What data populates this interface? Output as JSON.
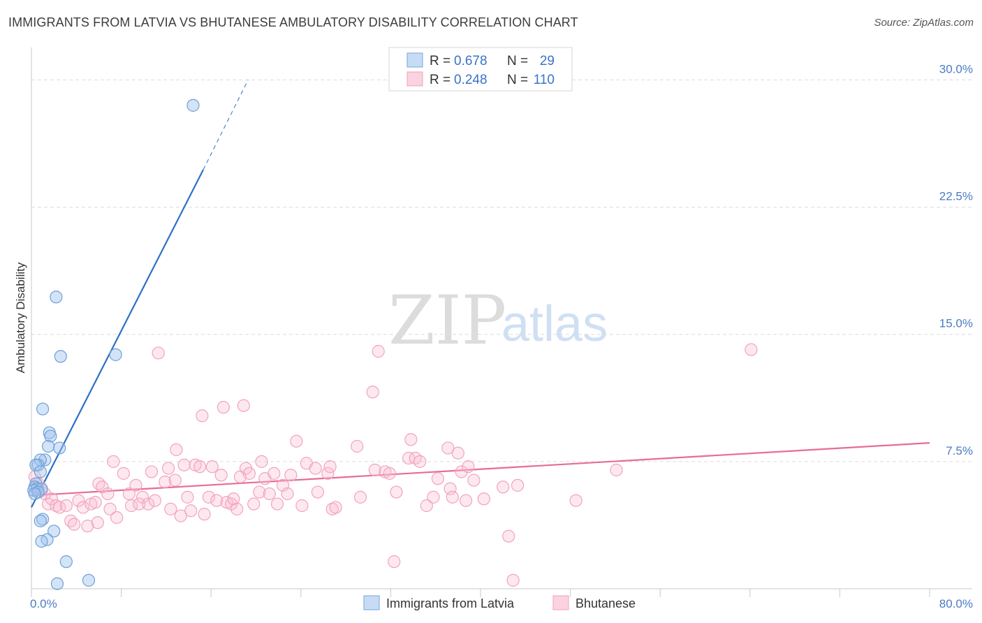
{
  "title": "IMMIGRANTS FROM LATVIA VS BHUTANESE AMBULATORY DISABILITY CORRELATION CHART",
  "source": "Source: ZipAtlas.com",
  "watermark": {
    "zip": "ZIP",
    "atlas": "atlas"
  },
  "legend": {
    "rows": [
      {
        "r_label": "R =",
        "r_value": "0.678",
        "n_label": "N =",
        "n_value": "29"
      },
      {
        "r_label": "R =",
        "r_value": "0.248",
        "n_label": "N =",
        "n_value": "110"
      }
    ]
  },
  "bottom_legend": [
    "Immigrants from Latvia",
    "Bhutanese"
  ],
  "chart_data": {
    "type": "scatter",
    "ylabel": "Ambulatory Disability",
    "xlabel": "",
    "xlim": [
      0,
      80
    ],
    "ylim": [
      0,
      31.5
    ],
    "y_ticks": [
      7.5,
      15.0,
      22.5,
      30.0
    ],
    "y_tick_labels": [
      "7.5%",
      "15.0%",
      "22.5%",
      "30.0%"
    ],
    "x_tick_labels": [
      "0.0%",
      "80.0%"
    ],
    "colors": {
      "latvia": "#6f9fd8",
      "bhutanese": "#f4a0b8",
      "latvia_line": "#2f6fc4",
      "bhutanese_line": "#e86b98"
    },
    "series": [
      {
        "name": "Immigrants from Latvia",
        "points": [
          [
            14.4,
            28.5
          ],
          [
            2.2,
            17.2
          ],
          [
            2.6,
            13.7
          ],
          [
            7.5,
            13.8
          ],
          [
            1.0,
            10.6
          ],
          [
            1.6,
            9.2
          ],
          [
            1.7,
            9.0
          ],
          [
            1.5,
            8.4
          ],
          [
            2.5,
            8.3
          ],
          [
            1.2,
            7.6
          ],
          [
            0.8,
            7.6
          ],
          [
            0.6,
            7.3
          ],
          [
            0.4,
            7.3
          ],
          [
            0.8,
            6.9
          ],
          [
            0.4,
            6.2
          ],
          [
            0.3,
            6.0
          ],
          [
            0.5,
            5.9
          ],
          [
            0.9,
            5.9
          ],
          [
            0.2,
            5.8
          ],
          [
            0.6,
            5.7
          ],
          [
            0.3,
            5.6
          ],
          [
            1.0,
            4.1
          ],
          [
            0.8,
            4.0
          ],
          [
            2.0,
            3.4
          ],
          [
            1.4,
            2.9
          ],
          [
            0.9,
            2.8
          ],
          [
            3.1,
            1.6
          ],
          [
            2.3,
            0.3
          ],
          [
            5.1,
            0.5
          ]
        ]
      },
      {
        "name": "Bhutanese",
        "points": [
          [
            0.3,
            6.6
          ],
          [
            0.6,
            6.2
          ],
          [
            0.9,
            5.8
          ],
          [
            1.2,
            5.6
          ],
          [
            1.5,
            5.0
          ],
          [
            1.8,
            5.3
          ],
          [
            2.2,
            4.9
          ],
          [
            2.5,
            4.8
          ],
          [
            3.1,
            4.9
          ],
          [
            3.5,
            4.0
          ],
          [
            3.8,
            3.8
          ],
          [
            4.2,
            5.2
          ],
          [
            4.6,
            4.8
          ],
          [
            5.0,
            3.7
          ],
          [
            5.3,
            5.0
          ],
          [
            5.7,
            5.1
          ],
          [
            5.9,
            3.9
          ],
          [
            6.0,
            6.2
          ],
          [
            6.3,
            6.0
          ],
          [
            6.8,
            5.6
          ],
          [
            7.0,
            4.7
          ],
          [
            7.3,
            7.5
          ],
          [
            7.6,
            4.2
          ],
          [
            8.2,
            6.8
          ],
          [
            8.7,
            5.6
          ],
          [
            8.9,
            4.9
          ],
          [
            9.3,
            6.1
          ],
          [
            9.6,
            5.0
          ],
          [
            9.9,
            5.4
          ],
          [
            10.4,
            5.0
          ],
          [
            10.7,
            6.9
          ],
          [
            11.0,
            5.2
          ],
          [
            11.3,
            13.9
          ],
          [
            11.9,
            6.3
          ],
          [
            12.2,
            7.1
          ],
          [
            12.4,
            4.7
          ],
          [
            12.8,
            6.4
          ],
          [
            12.9,
            8.2
          ],
          [
            13.3,
            4.3
          ],
          [
            13.6,
            7.3
          ],
          [
            13.9,
            5.4
          ],
          [
            14.2,
            4.6
          ],
          [
            14.6,
            7.3
          ],
          [
            15.0,
            7.2
          ],
          [
            15.2,
            10.2
          ],
          [
            15.4,
            4.4
          ],
          [
            15.8,
            5.4
          ],
          [
            16.1,
            7.2
          ],
          [
            16.5,
            5.2
          ],
          [
            16.9,
            6.7
          ],
          [
            17.1,
            10.7
          ],
          [
            17.4,
            5.1
          ],
          [
            17.8,
            5.0
          ],
          [
            18.0,
            5.3
          ],
          [
            18.3,
            4.7
          ],
          [
            18.6,
            6.6
          ],
          [
            18.9,
            10.8
          ],
          [
            19.1,
            7.1
          ],
          [
            19.4,
            6.8
          ],
          [
            19.8,
            5.0
          ],
          [
            20.3,
            5.7
          ],
          [
            20.5,
            7.5
          ],
          [
            20.8,
            6.5
          ],
          [
            21.2,
            5.6
          ],
          [
            21.6,
            6.8
          ],
          [
            21.9,
            5.0
          ],
          [
            22.4,
            6.1
          ],
          [
            22.8,
            5.6
          ],
          [
            23.1,
            6.7
          ],
          [
            23.6,
            8.7
          ],
          [
            24.1,
            4.9
          ],
          [
            24.5,
            7.4
          ],
          [
            25.3,
            7.1
          ],
          [
            25.5,
            5.7
          ],
          [
            26.4,
            6.8
          ],
          [
            26.6,
            7.2
          ],
          [
            26.8,
            4.7
          ],
          [
            27.1,
            4.8
          ],
          [
            29.0,
            8.4
          ],
          [
            29.3,
            5.4
          ],
          [
            30.6,
            7.0
          ],
          [
            30.9,
            14.0
          ],
          [
            30.4,
            11.6
          ],
          [
            31.5,
            6.9
          ],
          [
            31.9,
            6.8
          ],
          [
            32.3,
            1.6
          ],
          [
            32.5,
            5.7
          ],
          [
            33.6,
            7.7
          ],
          [
            33.8,
            8.8
          ],
          [
            34.2,
            7.7
          ],
          [
            34.6,
            7.5
          ],
          [
            35.2,
            4.9
          ],
          [
            35.8,
            5.4
          ],
          [
            36.2,
            6.5
          ],
          [
            37.3,
            5.9
          ],
          [
            37.1,
            8.3
          ],
          [
            37.5,
            5.4
          ],
          [
            38.0,
            8.0
          ],
          [
            38.3,
            6.9
          ],
          [
            38.7,
            5.2
          ],
          [
            38.9,
            7.2
          ],
          [
            39.4,
            6.4
          ],
          [
            40.3,
            5.3
          ],
          [
            42.0,
            6.0
          ],
          [
            42.5,
            3.1
          ],
          [
            42.9,
            0.5
          ],
          [
            43.3,
            6.1
          ],
          [
            52.1,
            7.0
          ],
          [
            64.1,
            14.1
          ],
          [
            48.5,
            5.2
          ]
        ]
      }
    ],
    "trend_lines": [
      {
        "series": "Immigrants from Latvia",
        "x": [
          0.0,
          15.3
        ],
        "y": [
          4.8,
          24.7
        ],
        "dashed_x": [
          15.3,
          19.3
        ],
        "dashed_y": [
          24.7,
          30.0
        ]
      },
      {
        "series": "Bhutanese",
        "x": [
          0.0,
          80.0
        ],
        "y": [
          5.5,
          8.6
        ]
      }
    ]
  }
}
